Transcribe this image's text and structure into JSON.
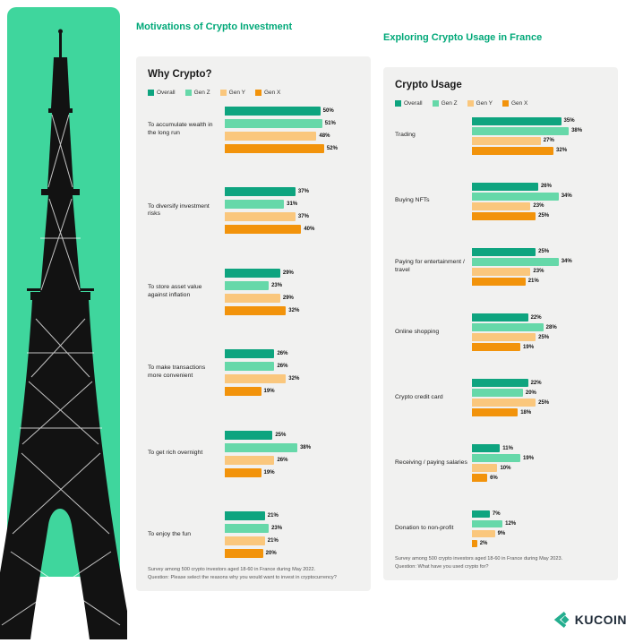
{
  "page": {
    "background_color": "#ffffff",
    "left_panel_color": "#3fd69d",
    "heading_color": "#00a878",
    "card_color": "#f1f1f0"
  },
  "branding": {
    "logo_text": "KUCOIN",
    "logo_color": "#24ae8f"
  },
  "series_colors": {
    "Overall": "#0ea47f",
    "Gen Z": "#66d8a9",
    "Gen Y": "#fac77d",
    "Gen X": "#f2930b"
  },
  "chart_data": [
    {
      "type": "bar",
      "orientation": "horizontal",
      "heading": "Motivations of Crypto Investment",
      "title": "Why Crypto?",
      "legend_position": "top",
      "xlim": [
        0,
        60
      ],
      "categories": [
        "To accumulate wealth in the long run",
        "To diversify investment risks",
        "To store asset value against inflation",
        "To make transactions more convenient",
        "To get rich overnight",
        "To enjoy the fun"
      ],
      "series": [
        {
          "name": "Overall",
          "values": [
            50,
            37,
            29,
            26,
            25,
            21
          ]
        },
        {
          "name": "Gen Z",
          "values": [
            51,
            31,
            23,
            26,
            38,
            23
          ]
        },
        {
          "name": "Gen Y",
          "values": [
            48,
            37,
            29,
            32,
            26,
            21
          ]
        },
        {
          "name": "Gen X",
          "values": [
            52,
            40,
            32,
            19,
            19,
            20
          ]
        }
      ],
      "value_suffix": "%",
      "footer": [
        "Survey among 500 crypto investors aged 18-60 in France during May 2022.",
        "Question: Please select the reasons why you would want to invest in cryptocurrency?"
      ]
    },
    {
      "type": "bar",
      "orientation": "horizontal",
      "heading": "Exploring Crypto Usage in France",
      "title": "Crypto Usage",
      "legend_position": "top",
      "xlim": [
        0,
        45
      ],
      "categories": [
        "Trading",
        "Buying NFTs",
        "Paying for entertainment / travel",
        "Online shopping",
        "Crypto credit card",
        "Receiving / paying salaries",
        "Donation to non-profit"
      ],
      "series": [
        {
          "name": "Overall",
          "values": [
            35,
            26,
            25,
            22,
            22,
            11,
            7
          ]
        },
        {
          "name": "Gen Z",
          "values": [
            38,
            34,
            34,
            28,
            20,
            19,
            12
          ]
        },
        {
          "name": "Gen Y",
          "values": [
            27,
            23,
            23,
            25,
            25,
            10,
            9
          ]
        },
        {
          "name": "Gen X",
          "values": [
            32,
            25,
            21,
            19,
            18,
            6,
            2
          ]
        }
      ],
      "value_suffix": "%",
      "footer": [
        "Survey among 500 crypto investors aged 18-60 in France during May 2023.",
        "Question: What have you used crypto for?"
      ]
    }
  ]
}
